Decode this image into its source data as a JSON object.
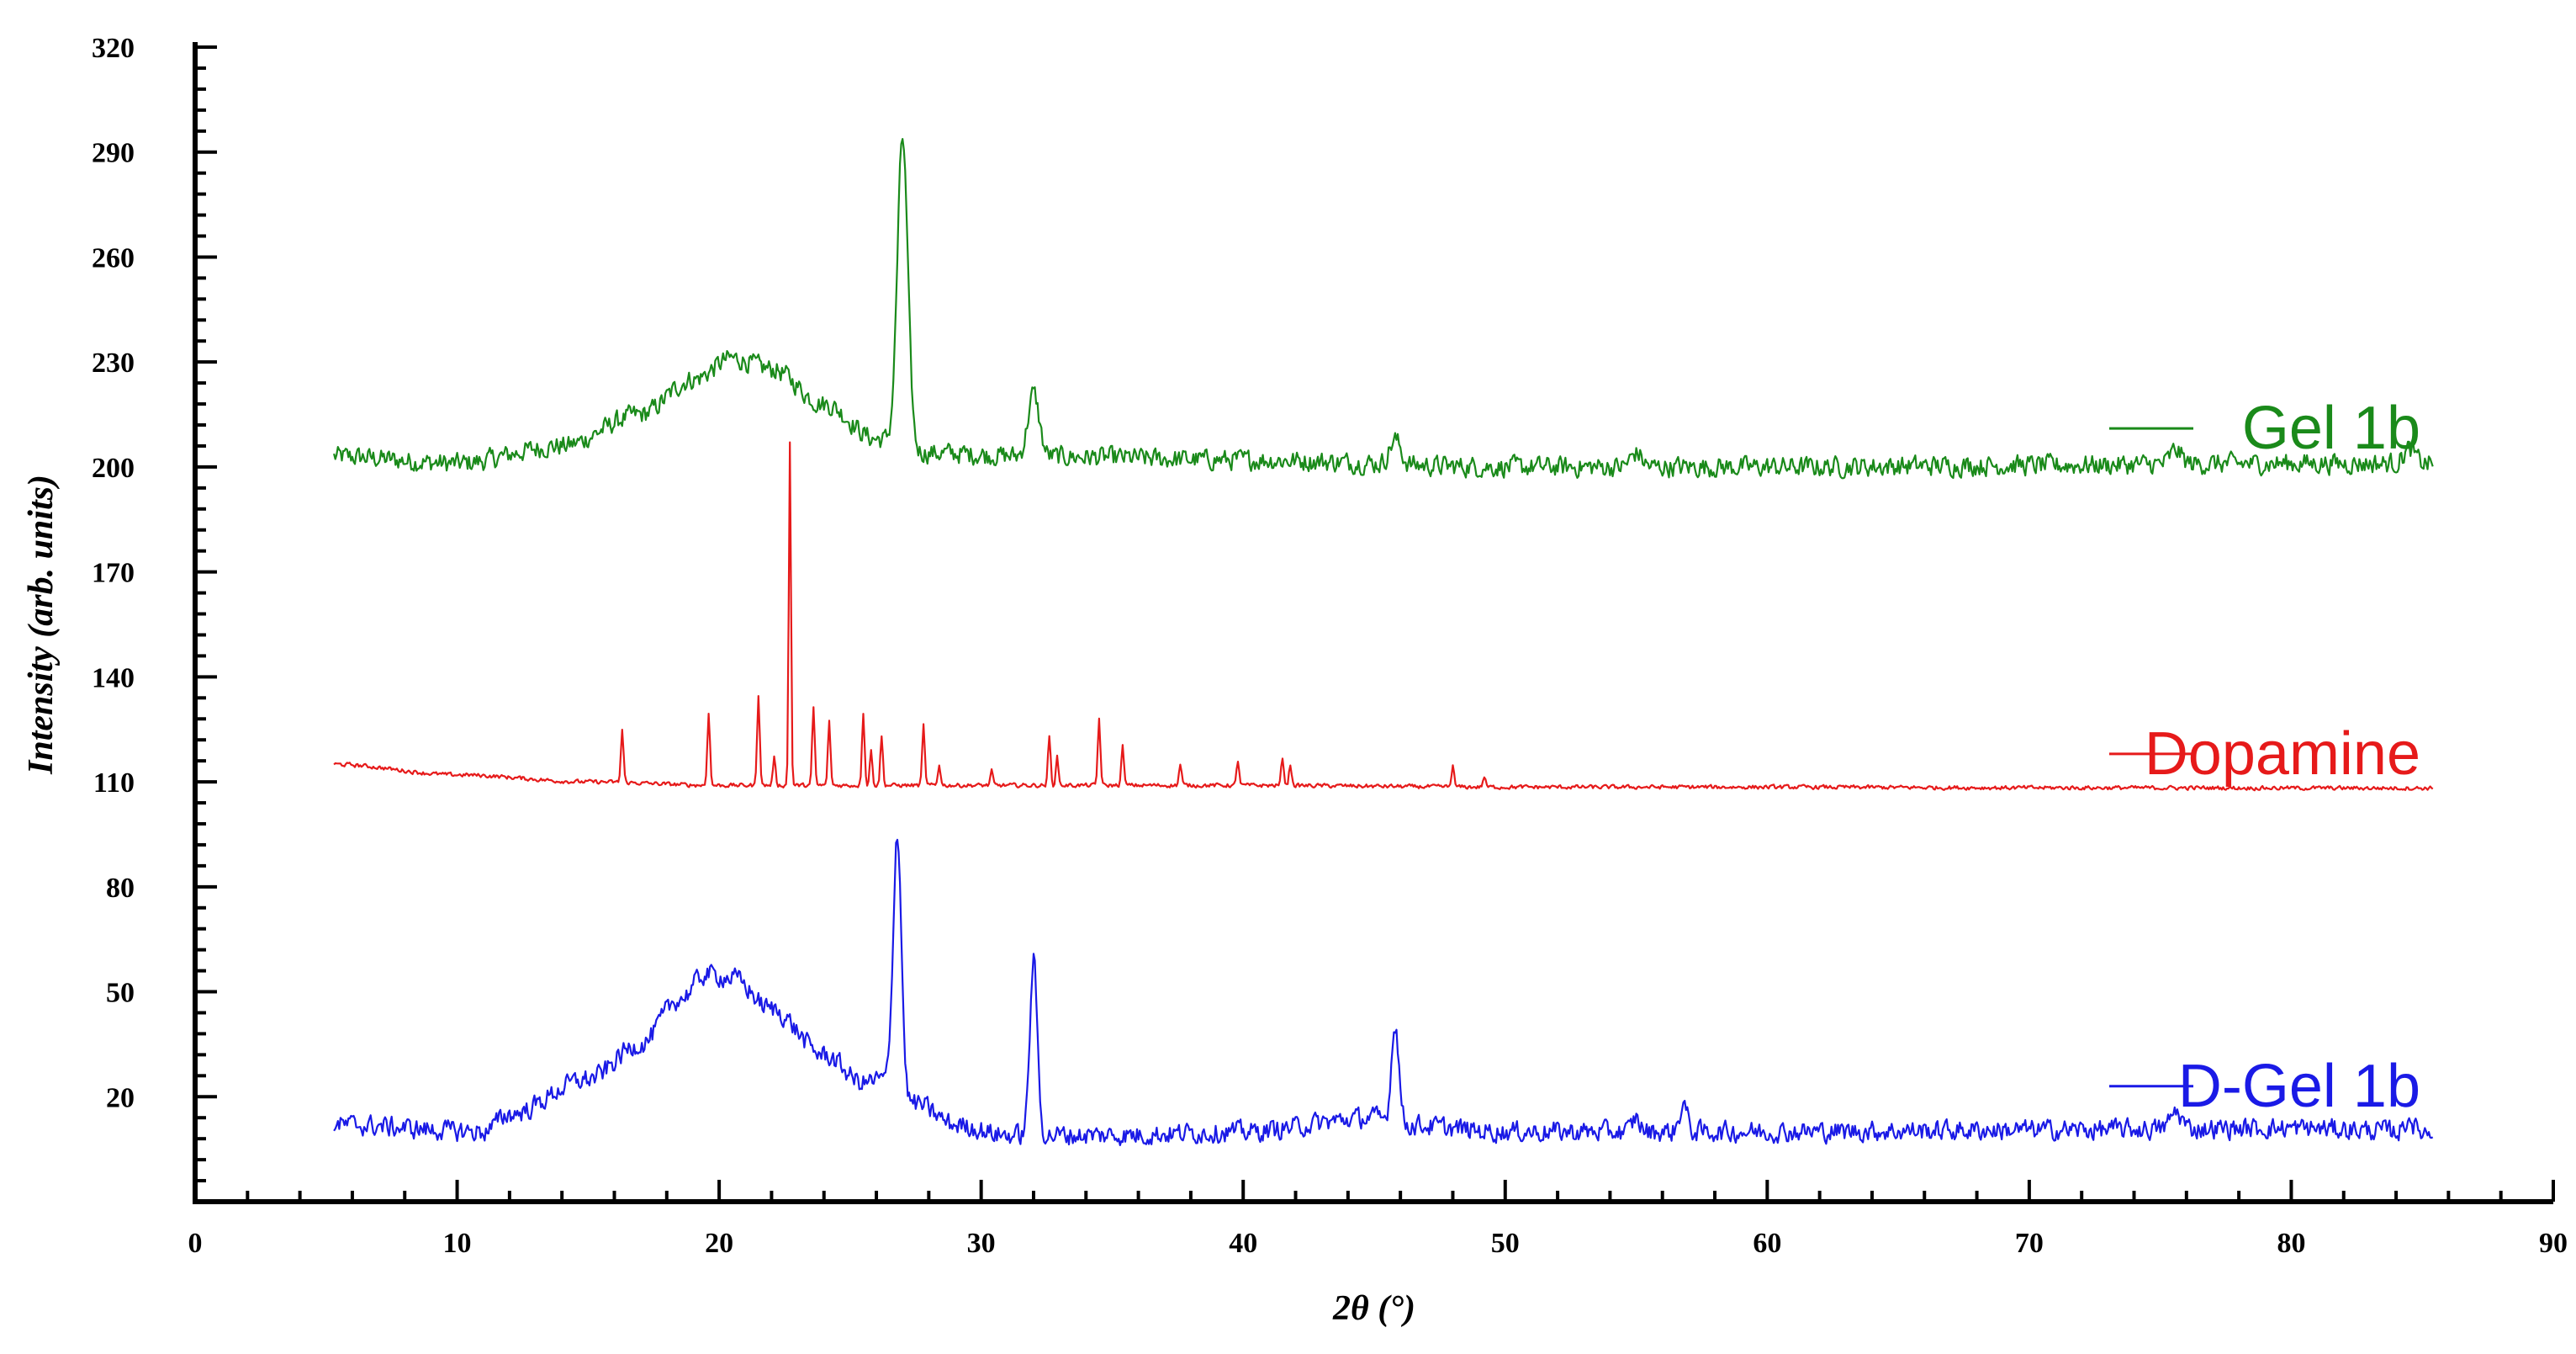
{
  "chart_data": {
    "type": "line",
    "xlabel": "2θ (°)",
    "ylabel": "Intensity (arb. units)",
    "xlim": [
      0,
      90
    ],
    "ylim": [
      -10,
      320
    ],
    "x_ticks": [
      0,
      10,
      20,
      30,
      40,
      50,
      60,
      70,
      80,
      90
    ],
    "y_ticks": [
      20,
      50,
      80,
      110,
      140,
      170,
      200,
      230,
      260,
      290,
      320
    ],
    "grid": false,
    "legend": "right",
    "x_range": [
      5.3,
      85.4
    ],
    "series": [
      {
        "name": "Gel 1b",
        "color": "#1a8a1a",
        "baseline": [
          [
            5.3,
            203
          ],
          [
            10,
            201
          ],
          [
            14,
            206
          ],
          [
            17,
            215
          ],
          [
            19,
            225
          ],
          [
            20.5,
            231
          ],
          [
            22,
            228
          ],
          [
            24,
            218
          ],
          [
            26,
            208
          ],
          [
            28,
            204
          ],
          [
            32,
            203
          ],
          [
            40,
            202
          ],
          [
            50,
            200
          ],
          [
            60,
            200
          ],
          [
            70,
            200.5
          ],
          [
            80,
            201
          ],
          [
            85.4,
            201
          ]
        ],
        "noise": 4,
        "peaks": [
          {
            "x": 27.0,
            "h": 88,
            "w": 0.28
          },
          {
            "x": 32.0,
            "h": 18,
            "w": 0.3
          },
          {
            "x": 45.8,
            "h": 7,
            "w": 0.3
          },
          {
            "x": 55.0,
            "h": 4,
            "w": 0.3
          },
          {
            "x": 75.6,
            "h": 4,
            "w": 0.3
          },
          {
            "x": 84.5,
            "h": 4,
            "w": 0.3
          }
        ]
      },
      {
        "name": "Dopamine",
        "color": "#e61a1a",
        "baseline": [
          [
            5.3,
            115
          ],
          [
            10,
            112
          ],
          [
            15,
            110
          ],
          [
            20,
            109
          ],
          [
            30,
            109
          ],
          [
            40,
            109
          ],
          [
            50,
            108.5
          ],
          [
            60,
            108.5
          ],
          [
            70,
            108.3
          ],
          [
            85.4,
            108.2
          ]
        ],
        "noise": 0.8,
        "peaks": [
          {
            "x": 16.3,
            "h": 15,
            "w": 0.07
          },
          {
            "x": 19.6,
            "h": 21,
            "w": 0.07
          },
          {
            "x": 21.5,
            "h": 26,
            "w": 0.07
          },
          {
            "x": 22.1,
            "h": 8,
            "w": 0.07
          },
          {
            "x": 22.7,
            "h": 98,
            "w": 0.06
          },
          {
            "x": 23.6,
            "h": 22,
            "w": 0.07
          },
          {
            "x": 24.2,
            "h": 18,
            "w": 0.07
          },
          {
            "x": 25.5,
            "h": 21,
            "w": 0.07
          },
          {
            "x": 25.8,
            "h": 10,
            "w": 0.07
          },
          {
            "x": 26.2,
            "h": 14,
            "w": 0.07
          },
          {
            "x": 27.8,
            "h": 17,
            "w": 0.07
          },
          {
            "x": 28.4,
            "h": 6,
            "w": 0.07
          },
          {
            "x": 30.4,
            "h": 4,
            "w": 0.07
          },
          {
            "x": 32.6,
            "h": 14,
            "w": 0.07
          },
          {
            "x": 32.9,
            "h": 8,
            "w": 0.07
          },
          {
            "x": 34.5,
            "h": 19,
            "w": 0.07
          },
          {
            "x": 35.4,
            "h": 11,
            "w": 0.07
          },
          {
            "x": 37.6,
            "h": 6,
            "w": 0.07
          },
          {
            "x": 39.8,
            "h": 7,
            "w": 0.07
          },
          {
            "x": 41.5,
            "h": 8,
            "w": 0.07
          },
          {
            "x": 41.8,
            "h": 6,
            "w": 0.07
          },
          {
            "x": 48.0,
            "h": 6,
            "w": 0.07
          },
          {
            "x": 49.2,
            "h": 3,
            "w": 0.07
          }
        ]
      },
      {
        "name": "D-Gel 1b",
        "color": "#1a1ae6",
        "baseline": [
          [
            5.3,
            12
          ],
          [
            11,
            10
          ],
          [
            12,
            15
          ],
          [
            15,
            25
          ],
          [
            17,
            35
          ],
          [
            18.5,
            48
          ],
          [
            19.5,
            55
          ],
          [
            20.5,
            54
          ],
          [
            22,
            45
          ],
          [
            24,
            32
          ],
          [
            25.5,
            24
          ],
          [
            26.2,
            25
          ],
          [
            27.5,
            18
          ],
          [
            29,
            12
          ],
          [
            31,
            9
          ],
          [
            35,
            9
          ],
          [
            40,
            10
          ],
          [
            45,
            14
          ],
          [
            46,
            12
          ],
          [
            50,
            10
          ],
          [
            60,
            10
          ],
          [
            70,
            10.5
          ],
          [
            80,
            11
          ],
          [
            85.4,
            10
          ]
        ],
        "noise": 4,
        "peaks": [
          {
            "x": 26.8,
            "h": 74,
            "w": 0.22
          },
          {
            "x": 32.0,
            "h": 50,
            "w": 0.2
          },
          {
            "x": 45.8,
            "h": 29,
            "w": 0.2
          },
          {
            "x": 55.0,
            "h": 4,
            "w": 0.2
          },
          {
            "x": 56.8,
            "h": 8,
            "w": 0.2
          },
          {
            "x": 75.6,
            "h": 5,
            "w": 0.3
          },
          {
            "x": 84.5,
            "h": 4,
            "w": 0.2
          }
        ]
      }
    ]
  }
}
